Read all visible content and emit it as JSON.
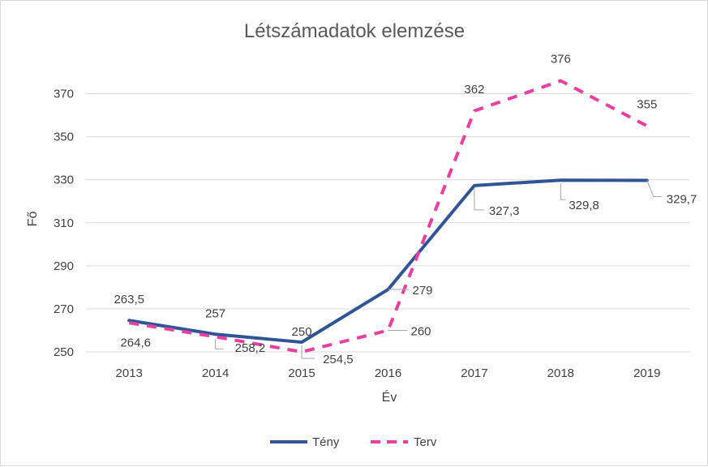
{
  "chart_data": {
    "type": "line",
    "title": "Létszámadatok elemzése",
    "xlabel": "Év",
    "ylabel": "Fő",
    "categories": [
      "2013",
      "2014",
      "2015",
      "2016",
      "2017",
      "2018",
      "2019"
    ],
    "ylim": [
      250,
      380
    ],
    "yticks": [
      250,
      270,
      290,
      310,
      330,
      350,
      370
    ],
    "ytick_labels": [
      "250",
      "270",
      "290",
      "310",
      "330",
      "350",
      "370"
    ],
    "grid": true,
    "legend_position": "bottom",
    "series": [
      {
        "name": "Tény",
        "values": [
          264.6,
          258.2,
          254.5,
          279,
          327.3,
          329.8,
          329.7
        ],
        "labels": [
          "264,6",
          "258,2",
          "254,5",
          "279",
          "327,3",
          "329,8",
          "329,7"
        ],
        "color": "#2f5597",
        "line_style": "solid"
      },
      {
        "name": "Terv",
        "values": [
          263.5,
          257,
          250,
          260,
          362,
          376,
          355
        ],
        "labels": [
          "263,5",
          "257",
          "250",
          "260",
          "362",
          "376",
          "355"
        ],
        "color": "#ea3fa0",
        "line_style": "dashed"
      }
    ]
  }
}
